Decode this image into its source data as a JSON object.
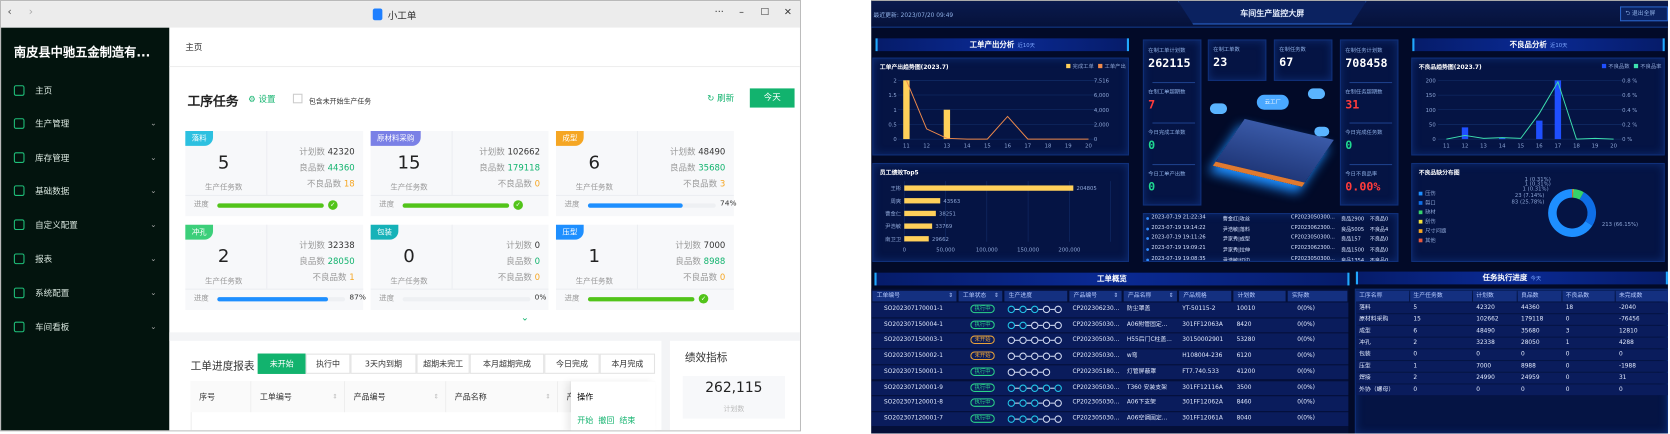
{
  "window": {
    "title": "小工单",
    "controls": [
      "···",
      "–",
      "☐",
      "✕"
    ]
  },
  "sidebar": {
    "company": "南皮县中驰五金制造有...",
    "items": [
      {
        "label": "主页",
        "icon": "home-icon"
      },
      {
        "label": "生产管理",
        "icon": "production-icon"
      },
      {
        "label": "库存管理",
        "icon": "inventory-icon"
      },
      {
        "label": "基础数据",
        "icon": "data-icon"
      },
      {
        "label": "自定义配置",
        "icon": "custom-config-icon"
      },
      {
        "label": "报表",
        "icon": "report-icon"
      },
      {
        "label": "系统配置",
        "icon": "system-config-icon"
      },
      {
        "label": "车间看板",
        "icon": "workshop-board-icon"
      }
    ]
  },
  "breadcrumb": "主页",
  "tasks": {
    "title": "工序任务",
    "settings": "设置",
    "include_label": "包含未开始生产任务",
    "include_checked": false,
    "refresh": "刷新",
    "today": "今天",
    "labels": {
      "plan": "计划数",
      "good": "良品数",
      "bad": "不良品数",
      "count": "生产任务数",
      "progress": "进度"
    },
    "cards": [
      {
        "name": "落料",
        "color": "#2cc0e0",
        "count": "5",
        "plan": "42320",
        "good": "44360",
        "bad": "18",
        "progress": 100,
        "pct": ""
      },
      {
        "name": "原材料采购",
        "color": "#7a80e6",
        "count": "15",
        "plan": "102662",
        "good": "179118",
        "bad": "0",
        "progress": 100,
        "pct": ""
      },
      {
        "name": "成型",
        "color": "#f5a623",
        "count": "6",
        "plan": "48490",
        "good": "35680",
        "bad": "3",
        "progress": 74,
        "pct": "74%"
      },
      {
        "name": "冲孔",
        "color": "#3ccf7a",
        "count": "2",
        "plan": "32338",
        "good": "28050",
        "bad": "1",
        "progress": 87,
        "pct": "87%"
      },
      {
        "name": "包装",
        "color": "#16b2b8",
        "count": "0",
        "plan": "0",
        "good": "0",
        "bad": "0",
        "progress": 0,
        "pct": "0%"
      },
      {
        "name": "压型",
        "color": "#1e8fff",
        "count": "1",
        "plan": "7000",
        "good": "8988",
        "bad": "0",
        "progress": 100,
        "pct": ""
      }
    ]
  },
  "report": {
    "title": "工单进度报表",
    "tabs": [
      "未开始",
      "执行中",
      "3天内到期",
      "超期未完工",
      "本月超期完成",
      "今日完成",
      "本月完成"
    ],
    "active_tab": 0,
    "columns": [
      "序号",
      "工单编号",
      "产品编号",
      "产品名称",
      "产",
      "操作"
    ],
    "row_actions": "开始  撤回  结束"
  },
  "kpi": {
    "title": "绩效指标",
    "value": "262,115",
    "label": "计划数"
  },
  "dash": {
    "updated": "最近更新: 2023/07/20 09:49",
    "title": "车间生产监控大屏",
    "exit": "退出全屏",
    "output_title": "工单产出分析",
    "output_sub": "近10天",
    "defect_title": "不良品分析",
    "defect_sub": "近10天",
    "kpis_left": [
      {
        "label": "在制工单计划数",
        "value": "262115",
        "color": "#ffffff"
      },
      {
        "label": "在制工单超期数",
        "value": "7",
        "color": "#ff3b3b"
      },
      {
        "label": "今日完成工单数",
        "value": "0",
        "color": "#1fd890"
      },
      {
        "label": "今日工单产出数",
        "value": "0",
        "color": "#1fd890"
      }
    ],
    "kpi_orders": {
      "label": "在制工单数",
      "value": "23"
    },
    "kpi_tasks": {
      "label": "在制任务数",
      "value": "67"
    },
    "kpis_right": [
      {
        "label": "在制任务计划数",
        "value": "708458",
        "color": "#ffffff"
      },
      {
        "label": "在制任务超期数",
        "value": "31",
        "color": "#ff3b3b"
      },
      {
        "label": "今日完成任务数",
        "value": "0",
        "color": "#1fd890"
      },
      {
        "label": "今日不良品率",
        "value": "0.00%",
        "color": "#ff3b3b"
      }
    ],
    "factory_label": "云工厂",
    "events": [
      {
        "time": "2023-07-19 21:22:34",
        "who": "曹金红|攻丝",
        "code": "CP2023050300...",
        "good": "良品2900",
        "bad": "不良品0"
      },
      {
        "time": "2023-07-19 19:14:22",
        "who": "尹浩敏|落料",
        "code": "CP2023062300...",
        "good": "良品5005",
        "bad": "不良品4"
      },
      {
        "time": "2023-07-19 19:11:26",
        "who": "尹家秀|成型",
        "code": "CP2023050300...",
        "good": "良品157",
        "bad": "不良品0"
      },
      {
        "time": "2023-07-19 19:09:21",
        "who": "尹家秀|拉伸",
        "code": "CP2023062300...",
        "good": "良品1500",
        "bad": "不良品0"
      },
      {
        "time": "2023-07-19 19:08:35",
        "who": "尹浩敏|切边",
        "code": "CP2023050300...",
        "good": "良品1354",
        "bad": "不良品0"
      }
    ],
    "overview": {
      "title": "工单概览",
      "columns": [
        "工单编号",
        "工单状态",
        "生产进度",
        "产品编号",
        "产品名称",
        "产品规格",
        "计划数",
        "实际数"
      ],
      "status_colors": {
        "执行中": "#2bd48a",
        "未开始": "#e8a23a"
      },
      "rows": [
        {
          "no": "SO202307170001-1",
          "status": "执行中",
          "steps": [
            1,
            1,
            1,
            0,
            0
          ],
          "code": "CP202306230...",
          "name": "防尘罩盖",
          "spec": "YT-50115-2",
          "plan": "10010",
          "actual": "0(0%)"
        },
        {
          "no": "SO202307150004-1",
          "status": "执行中",
          "steps": [
            1,
            1,
            0,
            0,
            0
          ],
          "code": "CP202305030...",
          "name": "A06附管固定...",
          "spec": "301FF12063A",
          "plan": "8420",
          "actual": "0(0%)"
        },
        {
          "no": "SO202307150003-1",
          "status": "未开始",
          "steps": [
            0,
            0,
            0,
            0,
            0
          ],
          "code": "CP202305030...",
          "name": "H55后门C柱盖...",
          "spec": "30150002901",
          "plan": "53280",
          "actual": "0(0%)"
        },
        {
          "no": "SO202307150002-1",
          "status": "未开始",
          "steps": [
            0,
            0,
            0,
            0,
            0
          ],
          "code": "CP202305030...",
          "name": "w弯",
          "spec": "H108004-236",
          "plan": "6120",
          "actual": "0(0%)"
        },
        {
          "no": "SO202307150001-1",
          "status": "执行中",
          "steps": [
            0,
            0,
            0,
            0
          ],
          "code": "CP202305180...",
          "name": "灯管屏蔽罩",
          "spec": "FT7.740.533",
          "plan": "41200",
          "actual": "0(0%)"
        },
        {
          "no": "SO202307120001-9",
          "status": "执行中",
          "steps": [
            1,
            1,
            1,
            1,
            1
          ],
          "code": "CP202305030...",
          "name": "T360 安装支架",
          "spec": "301FF12116A",
          "plan": "3500",
          "actual": "0(0%)"
        },
        {
          "no": "SO202307120001-8",
          "status": "执行中",
          "steps": [
            1,
            1,
            1,
            0,
            0
          ],
          "code": "CP202305030...",
          "name": "A06下支架",
          "spec": "301FF12062A",
          "plan": "8460",
          "actual": "0(0%)"
        },
        {
          "no": "SO202307120001-7",
          "status": "执行中",
          "steps": [
            1,
            1,
            1,
            0,
            0
          ],
          "code": "CP202305030...",
          "name": "A06空调固定...",
          "spec": "301FF12061A",
          "plan": "8040",
          "actual": "0(0%)"
        }
      ]
    },
    "progress": {
      "title": "任务执行进度",
      "sub": "今天",
      "columns": [
        "工序名称",
        "生产任务数",
        "计划数",
        "良品数",
        "不良品数",
        "未完成数"
      ],
      "rows": [
        [
          "落料",
          "5",
          "42320",
          "44360",
          "18",
          "-2040"
        ],
        [
          "原材料采购",
          "15",
          "102662",
          "179118",
          "0",
          "-76456"
        ],
        [
          "成型",
          "6",
          "48490",
          "35680",
          "3",
          "12810"
        ],
        [
          "冲孔",
          "2",
          "32338",
          "28050",
          "1",
          "4288"
        ],
        [
          "包装",
          "0",
          "0",
          "0",
          "0",
          "0"
        ],
        [
          "压型",
          "1",
          "7000",
          "8988",
          "0",
          "-1988"
        ],
        [
          "焊接",
          "2",
          "24990",
          "24959",
          "0",
          "31"
        ],
        [
          "外协（螺母）",
          "0",
          "0",
          "0",
          "0",
          "0"
        ]
      ]
    }
  },
  "chart_data": [
    {
      "type": "bar+line",
      "title": "工单产出趋势图(2023.7)",
      "categories": [
        "11",
        "12",
        "13",
        "14",
        "15",
        "16",
        "17",
        "18",
        "19",
        "20"
      ],
      "series": [
        {
          "name": "完成工单",
          "type": "bar",
          "axis": "left",
          "color": "#ffd05a",
          "values": [
            2,
            0,
            1,
            0,
            0,
            0,
            0,
            0,
            0,
            0
          ]
        },
        {
          "name": "工单产出",
          "type": "line",
          "axis": "right",
          "color": "#f08a4b",
          "values": [
            7516,
            1300,
            100,
            0,
            0,
            2900,
            0,
            0,
            0,
            0
          ]
        }
      ],
      "yleft": {
        "ticks": [
          "0",
          "0.5",
          "1",
          "1.5",
          "2"
        ],
        "max": 2
      },
      "yright": {
        "ticks": [
          "0",
          "2,000",
          "4,000",
          "6,000",
          "7,516"
        ],
        "max": 7516
      },
      "legend": "top-right"
    },
    {
      "type": "hbar",
      "title": "员工绩效Top5",
      "categories": [
        "王彬",
        "周爽",
        "曹金仁",
        "尹浩敏",
        "南卫卫"
      ],
      "values": [
        204805,
        43563,
        38251,
        33769,
        29662
      ],
      "color": "#ffd05a",
      "xticks": [
        "0",
        "50,000",
        "100,000",
        "150,000",
        "200,000"
      ],
      "xmax": 250000
    },
    {
      "type": "bar+line",
      "title": "不良品趋势图(2023.7)",
      "categories": [
        "11",
        "12",
        "13",
        "14",
        "15",
        "16",
        "17",
        "18",
        "19",
        "20"
      ],
      "series": [
        {
          "name": "不良品数",
          "type": "bar",
          "axis": "left",
          "color": "#1f4fff",
          "values": [
            0,
            40,
            0,
            5,
            0,
            63,
            200,
            0,
            0,
            0
          ]
        },
        {
          "name": "不良品率",
          "type": "line",
          "axis": "right",
          "color": "#3de0b0",
          "values": [
            0,
            0.05,
            0.01,
            0.02,
            0.01,
            0.35,
            0.78,
            0,
            0.01,
            0
          ]
        }
      ],
      "yleft": {
        "ticks": [
          "0",
          "50",
          "100",
          "150",
          "200"
        ],
        "max": 200
      },
      "yright": {
        "ticks": [
          "0 %",
          "0.2 %",
          "0.4 %",
          "0.6 %",
          "0.8 %"
        ],
        "max": 0.8
      },
      "legend": "top-right"
    },
    {
      "type": "pie",
      "donut": true,
      "title": "不良品缺分布图",
      "legend": "left",
      "slices": [
        {
          "name": "压伤",
          "value": 213,
          "label": "213 (66.15%)",
          "color": "#1e8fff"
        },
        {
          "name": "裂口",
          "value": 83,
          "label": "83 (25.78%)",
          "color": "#0e6ee6"
        },
        {
          "name": "缺材",
          "value": 23,
          "label": "23 (7.14%)",
          "color": "#36d36b"
        },
        {
          "name": "刮伤",
          "value": 1,
          "label": "1 (0.31%)",
          "color": "#f5e23b"
        },
        {
          "name": "尺寸问题",
          "value": 1,
          "label": "1 (0.31%)",
          "color": "#f5a623"
        },
        {
          "name": "其他",
          "value": 1,
          "label": "1 (0.31%)",
          "color": "#e8583c"
        }
      ]
    }
  ]
}
